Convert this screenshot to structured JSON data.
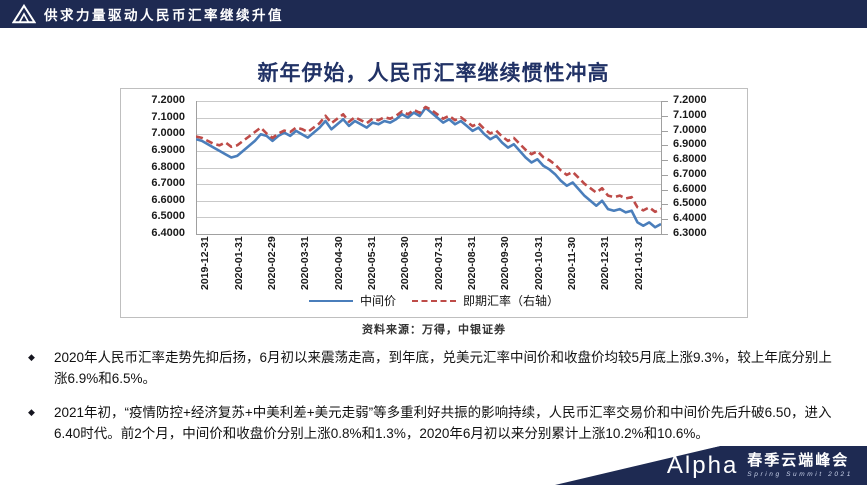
{
  "header": {
    "title": "供求力量驱动人民币汇率继续升值"
  },
  "slide": {
    "title": "新年伊始，人民币汇率继续惯性冲高"
  },
  "chart": {
    "source": "资料来源：万得，中银证券",
    "legend": [
      {
        "label": "中间价"
      },
      {
        "label": "即期汇率（右轴）"
      }
    ]
  },
  "chart_data": {
    "type": "line",
    "title": "新年伊始，人民币汇率继续惯性冲高",
    "x_labels": [
      "2019-12-31",
      "2020-01-31",
      "2020-02-29",
      "2020-03-31",
      "2020-04-30",
      "2020-05-31",
      "2020-06-30",
      "2020-07-31",
      "2020-08-31",
      "2020-09-30",
      "2020-10-31",
      "2020-11-30",
      "2020-12-31",
      "2021-01-31"
    ],
    "left_axis": {
      "min": 6.4,
      "max": 7.2,
      "step": 0.1,
      "labels": [
        "7.2000",
        "7.1000",
        "7.0000",
        "6.9000",
        "6.8000",
        "6.7000",
        "6.6000",
        "6.5000",
        "6.4000"
      ]
    },
    "right_axis": {
      "min": 6.3,
      "max": 7.2,
      "step": 0.1,
      "labels": [
        "7.2000",
        "7.1000",
        "7.0000",
        "6.9000",
        "6.8000",
        "6.7000",
        "6.6000",
        "6.5000",
        "6.4000",
        "6.3000"
      ]
    },
    "grid": true,
    "legend_position": "bottom",
    "series": [
      {
        "name": "中间价",
        "axis": "left",
        "color": "#4A7EBB",
        "dash": false,
        "values": [
          6.97,
          6.96,
          6.94,
          6.92,
          6.9,
          6.88,
          6.86,
          6.87,
          6.9,
          6.93,
          6.96,
          7.0,
          6.99,
          6.96,
          6.99,
          7.01,
          6.99,
          7.02,
          7.0,
          6.98,
          7.01,
          7.04,
          7.08,
          7.03,
          7.06,
          7.09,
          7.05,
          7.08,
          7.06,
          7.04,
          7.07,
          7.06,
          7.08,
          7.07,
          7.09,
          7.12,
          7.1,
          7.13,
          7.11,
          7.16,
          7.13,
          7.1,
          7.07,
          7.09,
          7.06,
          7.08,
          7.05,
          7.02,
          7.04,
          7.0,
          6.97,
          6.99,
          6.95,
          6.92,
          6.94,
          6.9,
          6.86,
          6.83,
          6.85,
          6.81,
          6.79,
          6.76,
          6.72,
          6.69,
          6.71,
          6.67,
          6.63,
          6.6,
          6.57,
          6.6,
          6.55,
          6.54,
          6.55,
          6.53,
          6.54,
          6.47,
          6.45,
          6.47,
          6.44,
          6.46
        ]
      },
      {
        "name": "即期汇率（右轴）",
        "axis": "right",
        "color": "#BE4B48",
        "dash": true,
        "values": [
          6.96,
          6.95,
          6.93,
          6.91,
          6.9,
          6.92,
          6.89,
          6.9,
          6.93,
          6.96,
          6.99,
          7.02,
          6.98,
          6.95,
          6.98,
          7.0,
          6.99,
          7.02,
          7.01,
          6.99,
          7.02,
          7.05,
          7.1,
          7.05,
          7.08,
          7.11,
          7.06,
          7.09,
          7.07,
          7.05,
          7.08,
          7.07,
          7.09,
          7.08,
          7.1,
          7.13,
          7.11,
          7.14,
          7.12,
          7.16,
          7.14,
          7.11,
          7.08,
          7.1,
          7.07,
          7.09,
          7.06,
          7.03,
          7.05,
          7.01,
          6.98,
          7.0,
          6.96,
          6.93,
          6.95,
          6.91,
          6.87,
          6.84,
          6.86,
          6.82,
          6.8,
          6.77,
          6.73,
          6.7,
          6.72,
          6.68,
          6.64,
          6.61,
          6.58,
          6.61,
          6.56,
          6.55,
          6.56,
          6.54,
          6.55,
          6.48,
          6.46,
          6.48,
          6.45,
          6.47
        ]
      }
    ]
  },
  "bullets": [
    {
      "marker": "◆",
      "text": "2020年人民币汇率走势先抑后扬，6月初以来震荡走高，到年底，兑美元汇率中间价和收盘价均较5月底上涨9.3%，较上年底分别上涨6.9%和6.5%。"
    },
    {
      "marker": "◆",
      "text": "2021年初，“疫情防控+经济复苏+中美利差+美元走弱”等多重利好共振的影响持续，人民币汇率交易价和中间价先后升破6.50，进入6.40时代。前2个月，中间价和收盘价分别上涨0.8%和1.3%，2020年6月初以来分别累计上涨10.2%和10.6%。"
    }
  ],
  "footer": {
    "logo_text": "Alpha",
    "summit_cn": "春季云端峰会",
    "summit_en": "Spring Summit 2021"
  },
  "colors": {
    "navy": "#1E2A52",
    "title": "#213266",
    "blue_line": "#4A7EBB",
    "red_line": "#BE4B48"
  }
}
